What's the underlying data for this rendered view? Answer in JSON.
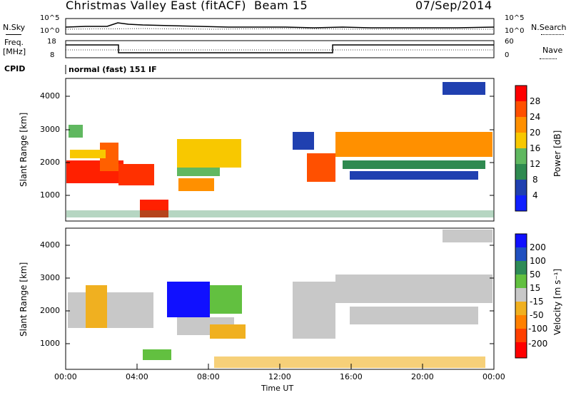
{
  "header": {
    "station": "Christmas Valley East (fitACF)",
    "beam": "Beam 15",
    "date": "07/Sep/2014"
  },
  "noise_panel": {
    "left_label": "N.Sky",
    "left_ticks": [
      "10^5",
      "10^0"
    ],
    "right_ticks": [
      "10^5",
      "10^0"
    ],
    "right_label": "N.Search"
  },
  "freq_panel": {
    "left_label_1": "Freq.",
    "left_label_2": "[MHz]",
    "left_ticks": [
      "18",
      "8"
    ],
    "right_ticks": [
      "60",
      "0"
    ],
    "right_label": "Nave"
  },
  "cpid": {
    "label": "CPID",
    "mode": "normal (fast) 151 IF"
  },
  "chart_data": [
    {
      "type": "heatmap",
      "name": "power",
      "ylabel": "Slant Range [km]",
      "yticks": [
        "4000",
        "3000",
        "2000",
        "1000"
      ],
      "colorbar_label": "Power [dB]",
      "colorbar_ticks": [
        "28",
        "24",
        "20",
        "16",
        "12",
        "8",
        "4"
      ],
      "colors": [
        "#ff0000",
        "#ff5000",
        "#ff9000",
        "#f8c800",
        "#60b860",
        "#2f8a50",
        "#2040b0",
        "#1020ff"
      ]
    },
    {
      "type": "heatmap",
      "name": "velocity",
      "ylabel": "Slant Range [km]",
      "yticks": [
        "4000",
        "3000",
        "2000",
        "1000"
      ],
      "colorbar_label": "Velocity [m s⁻¹]",
      "colorbar_ticks": [
        "200",
        "100",
        "50",
        "15",
        "-15",
        "-50",
        "-100",
        "-200"
      ],
      "colors": [
        "#1010ff",
        "#2050c0",
        "#2e8b57",
        "#62c040",
        "#c8c8c8",
        "#f0b020",
        "#ff8000",
        "#ff4000",
        "#ff0000"
      ]
    }
  ],
  "xaxis": {
    "label": "Time UT",
    "ticks": [
      "00:00",
      "04:00",
      "08:00",
      "12:00",
      "16:00",
      "20:00",
      "00:00"
    ]
  }
}
